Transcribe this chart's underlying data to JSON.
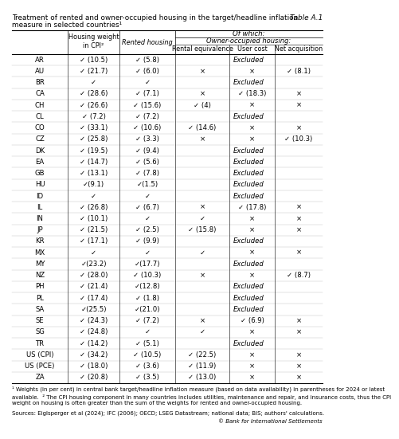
{
  "title_line1": "Treatment of rented and owner-occupied housing in the target/headline inflation",
  "title_line2": "measure in selected countries¹",
  "table_id": "Table A.1",
  "footnote1": "¹ Weights (in per cent) in central bank target/headline inflation measure (based on data availability) in parentheses for 2024 or latest\navailable.  ² The CPI housing component in many countries includes utilities, maintenance and repair, and insurance costs, thus the CPI\nweight on housing is often greater than the sum of the weights for rented and owner-occupied housing.",
  "footnote2": "Sources: Eiglsperger et al (2024); IFC (2006); OECD; LSEG Datastream; national data; BIS; authors' calculations.",
  "footnote3": "© Bank for International Settlements",
  "rows": [
    {
      "country": "AR",
      "hw": "✓ (10.5)",
      "rh": "✓ (5.8)",
      "re": "Excluded",
      "uc": "",
      "na": ""
    },
    {
      "country": "AU",
      "hw": "✓ (21.7)",
      "rh": "✓ (6.0)",
      "re": "×",
      "uc": "×",
      "na": "✓ (8.1)"
    },
    {
      "country": "BR",
      "hw": "✓",
      "rh": "✓",
      "re": "Excluded",
      "uc": "",
      "na": ""
    },
    {
      "country": "CA",
      "hw": "✓ (28.6)",
      "rh": "✓ (7.1)",
      "re": "×",
      "uc": "✓ (18.3)",
      "na": "×"
    },
    {
      "country": "CH",
      "hw": "✓ (26.6)",
      "rh": "✓ (15.6)",
      "re": "✓ (4)",
      "uc": "×",
      "na": "×"
    },
    {
      "country": "CL",
      "hw": "✓ (7.2)",
      "rh": "✓ (7.2)",
      "re": "Excluded",
      "uc": "",
      "na": ""
    },
    {
      "country": "CO",
      "hw": "✓ (33.1)",
      "rh": "✓ (10.6)",
      "re": "✓ (14.6)",
      "uc": "×",
      "na": "×"
    },
    {
      "country": "CZ",
      "hw": "✓ (25.8)",
      "rh": "✓ (3.3)",
      "re": "×",
      "uc": "×",
      "na": "✓ (10.3)"
    },
    {
      "country": "DK",
      "hw": "✓ (19.5)",
      "rh": "✓ (9.4)",
      "re": "Excluded",
      "uc": "",
      "na": ""
    },
    {
      "country": "EA",
      "hw": "✓ (14.7)",
      "rh": "✓ (5.6)",
      "re": "Excluded",
      "uc": "",
      "na": ""
    },
    {
      "country": "GB",
      "hw": "✓ (13.1)",
      "rh": "✓ (7.8)",
      "re": "Excluded",
      "uc": "",
      "na": ""
    },
    {
      "country": "HU",
      "hw": "✓(9.1)",
      "rh": "✓(1.5)",
      "re": "Excluded",
      "uc": "",
      "na": ""
    },
    {
      "country": "ID",
      "hw": "✓",
      "rh": "✓",
      "re": "Excluded",
      "uc": "",
      "na": ""
    },
    {
      "country": "IL",
      "hw": "✓ (26.8)",
      "rh": "✓ (6.7)",
      "re": "×",
      "uc": "✓ (17.8)",
      "na": "×"
    },
    {
      "country": "IN",
      "hw": "✓ (10.1)",
      "rh": "✓",
      "re": "✓",
      "uc": "×",
      "na": "×"
    },
    {
      "country": "JP",
      "hw": "✓ (21.5)",
      "rh": "✓ (2.5)",
      "re": "✓ (15.8)",
      "uc": "×",
      "na": "×"
    },
    {
      "country": "KR",
      "hw": "✓ (17.1)",
      "rh": "✓ (9.9)",
      "re": "Excluded",
      "uc": "",
      "na": ""
    },
    {
      "country": "MX",
      "hw": "✓",
      "rh": "✓",
      "re": "✓",
      "uc": "×",
      "na": "×"
    },
    {
      "country": "MY",
      "hw": "✓(23.2)",
      "rh": "✓(17.7)",
      "re": "Excluded",
      "uc": "",
      "na": ""
    },
    {
      "country": "NZ",
      "hw": "✓ (28.0)",
      "rh": "✓ (10.3)",
      "re": "×",
      "uc": "×",
      "na": "✓ (8.7)"
    },
    {
      "country": "PH",
      "hw": "✓ (21.4)",
      "rh": "✓(12.8)",
      "re": "Excluded",
      "uc": "",
      "na": ""
    },
    {
      "country": "PL",
      "hw": "✓ (17.4)",
      "rh": "✓ (1.8)",
      "re": "Excluded",
      "uc": "",
      "na": ""
    },
    {
      "country": "SA",
      "hw": "✓(25.5)",
      "rh": "✓(21.0)",
      "re": "Excluded",
      "uc": "",
      "na": ""
    },
    {
      "country": "SE",
      "hw": "✓ (24.3)",
      "rh": "✓ (7.2)",
      "re": "×",
      "uc": "✓ (6.9)",
      "na": "×"
    },
    {
      "country": "SG",
      "hw": "✓ (24.8)",
      "rh": "✓",
      "re": "✓",
      "uc": "×",
      "na": "×"
    },
    {
      "country": "TR",
      "hw": "✓ (14.2)",
      "rh": "✓ (5.1)",
      "re": "Excluded",
      "uc": "",
      "na": ""
    },
    {
      "country": "US (CPI)",
      "hw": "✓ (34.2)",
      "rh": "✓ (10.5)",
      "re": "✓ (22.5)",
      "uc": "×",
      "na": "×"
    },
    {
      "country": "US (PCE)",
      "hw": "✓ (18.0)",
      "rh": "✓ (3.6)",
      "re": "✓ (11.9)",
      "uc": "×",
      "na": "×"
    },
    {
      "country": "ZA",
      "hw": "✓ (20.8)",
      "rh": "✓ (3.5)",
      "re": "✓ (13.0)",
      "uc": "×",
      "na": "×"
    }
  ]
}
